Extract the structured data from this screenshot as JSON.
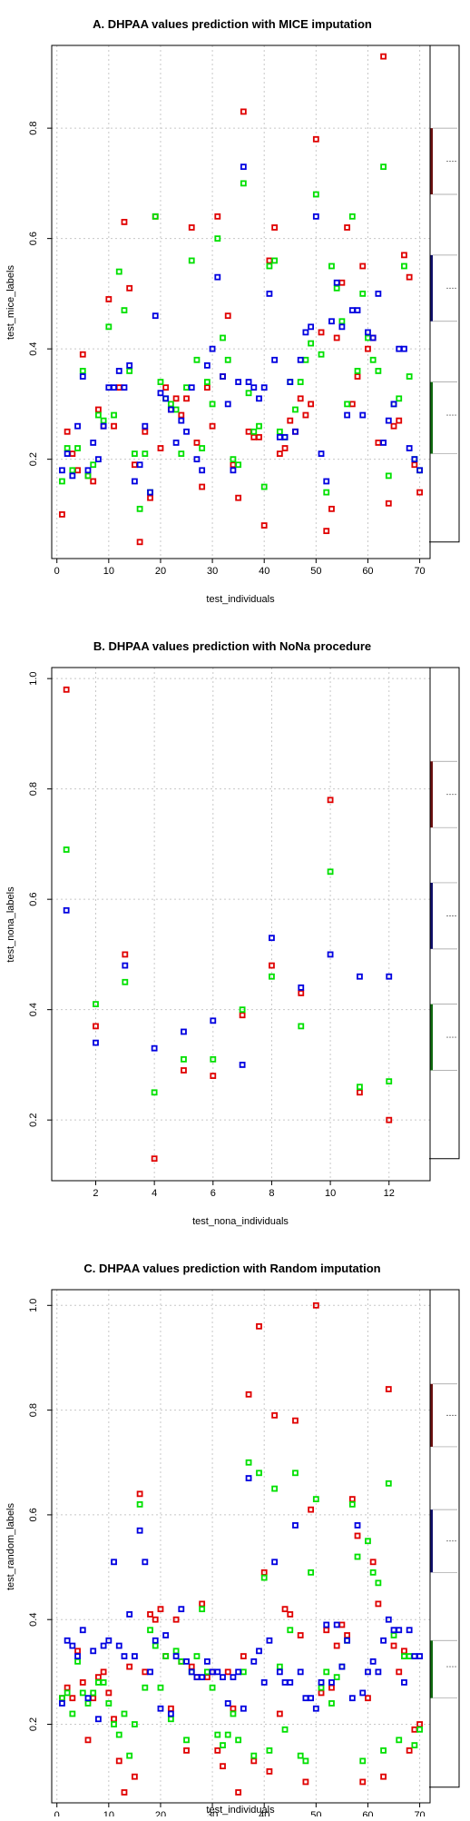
{
  "colors": {
    "red": "#e00000",
    "green": "#00e000",
    "blue": "#0000e0",
    "grid": "#c8c8c8",
    "box_red": "#6b1010",
    "box_blue": "#10106b",
    "box_green": "#106b10"
  },
  "chart_data": [
    {
      "type": "scatter",
      "title": "A. DHPAA values prediction with MICE imputation",
      "xlabel": "test_individuals",
      "ylabel": "test_mice_labels",
      "xlim": [
        -1,
        72
      ],
      "ylim": [
        0.02,
        0.95
      ],
      "xticks": [
        0,
        10,
        20,
        30,
        40,
        50,
        60,
        70
      ],
      "yticks": [
        0.2,
        0.4,
        0.6,
        0.8
      ],
      "grid": true,
      "legend": "none",
      "series": [
        {
          "color_key": "red",
          "x": [
            1,
            2,
            3,
            4,
            5,
            6,
            7,
            8,
            9,
            10,
            11,
            12,
            13,
            14,
            15,
            16,
            17,
            18,
            19,
            20,
            21,
            22,
            23,
            24,
            25,
            26,
            27,
            28,
            29,
            30,
            31,
            32,
            33,
            34,
            35,
            36,
            37,
            38,
            39,
            40,
            41,
            42,
            43,
            44,
            45,
            46,
            47,
            48,
            49,
            50,
            51,
            52,
            53,
            54,
            55,
            56,
            57,
            58,
            59,
            60,
            61,
            62,
            63,
            64,
            65,
            66,
            67,
            68,
            69,
            70
          ],
          "y": [
            0.1,
            0.25,
            0.21,
            0.18,
            0.39,
            0.17,
            0.16,
            0.29,
            0.26,
            0.49,
            0.26,
            0.33,
            0.63,
            0.51,
            0.19,
            0.05,
            0.25,
            0.13,
            0.64,
            0.22,
            0.33,
            0.29,
            0.31,
            0.28,
            0.31,
            0.62,
            0.23,
            0.15,
            0.33,
            0.26,
            0.64,
            0.35,
            0.46,
            0.19,
            0.13,
            0.83,
            0.25,
            0.24,
            0.24,
            0.08,
            0.56,
            0.62,
            0.21,
            0.22,
            0.27,
            0.25,
            0.31,
            0.28,
            0.3,
            0.78,
            0.43,
            0.07,
            0.11,
            0.42,
            0.52,
            0.62,
            0.3,
            0.35,
            0.55,
            0.4,
            0.42,
            0.23,
            0.93,
            0.12,
            0.26,
            0.27,
            0.57,
            0.53,
            0.19,
            0.14
          ]
        },
        {
          "color_key": "green",
          "x": [
            1,
            2,
            3,
            4,
            5,
            6,
            7,
            8,
            9,
            10,
            11,
            12,
            13,
            14,
            15,
            16,
            17,
            18,
            19,
            20,
            21,
            22,
            23,
            24,
            25,
            26,
            27,
            28,
            29,
            30,
            31,
            32,
            33,
            34,
            35,
            36,
            37,
            38,
            39,
            40,
            41,
            42,
            43,
            44,
            45,
            46,
            47,
            48,
            49,
            50,
            51,
            52,
            53,
            54,
            55,
            56,
            57,
            58,
            59,
            60,
            61,
            62,
            63,
            64,
            65,
            66,
            67,
            68,
            69,
            70
          ],
          "y": [
            0.16,
            0.22,
            0.18,
            0.22,
            0.36,
            0.17,
            0.19,
            0.28,
            0.27,
            0.44,
            0.28,
            0.54,
            0.47,
            0.36,
            0.21,
            0.11,
            0.21,
            0.14,
            0.64,
            0.34,
            0.31,
            0.3,
            0.29,
            0.21,
            0.33,
            0.56,
            0.38,
            0.22,
            0.34,
            0.3,
            0.6,
            0.42,
            0.38,
            0.2,
            0.19,
            0.7,
            0.32,
            0.25,
            0.26,
            0.15,
            0.55,
            0.56,
            0.25,
            0.24,
            0.34,
            0.29,
            0.34,
            0.38,
            0.41,
            0.68,
            0.39,
            0.14,
            0.55,
            0.51,
            0.45,
            0.3,
            0.64,
            0.36,
            0.5,
            0.42,
            0.38,
            0.36,
            0.73,
            0.17,
            0.3,
            0.31,
            0.55,
            0.35,
            0.2,
            0.18
          ]
        },
        {
          "color_key": "blue",
          "x": [
            1,
            2,
            3,
            4,
            5,
            6,
            7,
            8,
            9,
            10,
            11,
            12,
            13,
            14,
            15,
            16,
            17,
            18,
            19,
            20,
            21,
            22,
            23,
            24,
            25,
            26,
            27,
            28,
            29,
            30,
            31,
            32,
            33,
            34,
            35,
            36,
            37,
            38,
            39,
            40,
            41,
            42,
            43,
            44,
            45,
            46,
            47,
            48,
            49,
            50,
            51,
            52,
            53,
            54,
            55,
            56,
            57,
            58,
            59,
            60,
            61,
            62,
            63,
            64,
            65,
            66,
            67,
            68,
            69,
            70
          ],
          "y": [
            0.18,
            0.21,
            0.17,
            0.26,
            0.35,
            0.18,
            0.23,
            0.2,
            0.26,
            0.33,
            0.33,
            0.36,
            0.33,
            0.37,
            0.16,
            0.19,
            0.26,
            0.14,
            0.46,
            0.32,
            0.31,
            0.29,
            0.23,
            0.27,
            0.25,
            0.33,
            0.2,
            0.18,
            0.37,
            0.4,
            0.53,
            0.35,
            0.3,
            0.18,
            0.34,
            0.73,
            0.34,
            0.33,
            0.31,
            0.33,
            0.5,
            0.38,
            0.24,
            0.24,
            0.34,
            0.25,
            0.38,
            0.43,
            0.44,
            0.64,
            0.21,
            0.16,
            0.45,
            0.52,
            0.44,
            0.28,
            0.47,
            0.47,
            0.28,
            0.43,
            0.42,
            0.5,
            0.23,
            0.27,
            0.3,
            0.4,
            0.4,
            0.22,
            0.2,
            0.18
          ]
        }
      ],
      "boxes": [
        {
          "color_key": "box_red",
          "median": 0.74,
          "q1": 0.68,
          "q3": 0.8
        },
        {
          "color_key": "box_blue",
          "median": 0.51,
          "q1": 0.45,
          "q3": 0.57
        },
        {
          "color_key": "box_green",
          "median": 0.28,
          "q1": 0.21,
          "q3": 0.34
        }
      ],
      "box_frame_bottom": 0.05
    },
    {
      "type": "scatter",
      "title": "B. DHPAA values prediction with NoNa procedure",
      "xlabel": "test_nona_individuals",
      "ylabel": "test_nona_labels",
      "xlim": [
        0.5,
        13.4
      ],
      "ylim": [
        0.09,
        1.02
      ],
      "xticks": [
        2,
        4,
        6,
        8,
        10,
        12
      ],
      "yticks": [
        0.2,
        0.4,
        0.6,
        0.8,
        1.0
      ],
      "grid": true,
      "legend": "none",
      "series": [
        {
          "color_key": "red",
          "x": [
            1,
            2,
            3,
            4,
            5,
            6,
            7,
            8,
            9,
            10,
            11,
            12
          ],
          "y": [
            0.98,
            0.37,
            0.5,
            0.13,
            0.29,
            0.28,
            0.39,
            0.48,
            0.43,
            0.78,
            0.25,
            0.2
          ]
        },
        {
          "color_key": "green",
          "x": [
            1,
            2,
            3,
            4,
            5,
            6,
            7,
            8,
            9,
            10,
            11,
            12
          ],
          "y": [
            0.69,
            0.41,
            0.45,
            0.25,
            0.31,
            0.31,
            0.4,
            0.46,
            0.37,
            0.65,
            0.26,
            0.27
          ]
        },
        {
          "color_key": "blue",
          "x": [
            1,
            2,
            3,
            4,
            5,
            6,
            7,
            8,
            9,
            10,
            11,
            12
          ],
          "y": [
            0.58,
            0.34,
            0.48,
            0.33,
            0.36,
            0.38,
            0.3,
            0.53,
            0.44,
            0.5,
            0.46,
            0.46
          ]
        }
      ],
      "boxes": [
        {
          "color_key": "box_red",
          "median": 0.79,
          "q1": 0.73,
          "q3": 0.85
        },
        {
          "color_key": "box_blue",
          "median": 0.57,
          "q1": 0.51,
          "q3": 0.63
        },
        {
          "color_key": "box_green",
          "median": 0.35,
          "q1": 0.29,
          "q3": 0.41
        }
      ],
      "box_frame_bottom": 0.13
    },
    {
      "type": "scatter",
      "title": "C. DHPAA values prediction with Random imputation",
      "xlabel": "test_individuals",
      "ylabel": "test_random_labels",
      "xlim": [
        -1,
        72
      ],
      "ylim": [
        0.05,
        1.03
      ],
      "xticks": [
        0,
        10,
        20,
        30,
        40,
        50,
        60,
        70
      ],
      "yticks": [
        0.2,
        0.4,
        0.6,
        0.8,
        1.0
      ],
      "grid": true,
      "legend": "none",
      "series": [
        {
          "color_key": "red",
          "x": [
            1,
            2,
            3,
            4,
            5,
            6,
            7,
            8,
            9,
            10,
            11,
            12,
            13,
            14,
            15,
            16,
            17,
            18,
            19,
            20,
            21,
            22,
            23,
            24,
            25,
            26,
            27,
            28,
            29,
            30,
            31,
            32,
            33,
            34,
            35,
            36,
            37,
            38,
            39,
            40,
            41,
            42,
            43,
            44,
            45,
            46,
            47,
            48,
            49,
            50,
            51,
            52,
            53,
            54,
            55,
            56,
            57,
            58,
            59,
            60,
            61,
            62,
            63,
            64,
            65,
            66,
            67,
            68,
            69,
            70
          ],
          "y": [
            0.25,
            0.27,
            0.25,
            0.34,
            0.28,
            0.17,
            0.25,
            0.29,
            0.3,
            0.26,
            0.21,
            0.13,
            0.07,
            0.31,
            0.1,
            0.64,
            0.3,
            0.41,
            0.4,
            0.42,
            0.33,
            0.23,
            0.4,
            0.32,
            0.15,
            0.31,
            0.29,
            0.43,
            0.29,
            0.3,
            0.15,
            0.12,
            0.3,
            0.23,
            0.07,
            0.33,
            0.83,
            0.13,
            0.96,
            0.49,
            0.11,
            0.79,
            0.22,
            0.42,
            0.41,
            0.78,
            0.37,
            0.09,
            0.61,
            1.0,
            0.26,
            0.38,
            0.27,
            0.35,
            0.39,
            0.37,
            0.63,
            0.56,
            0.09,
            0.25,
            0.51,
            0.43,
            0.1,
            0.84,
            0.35,
            0.3,
            0.34,
            0.15,
            0.19,
            0.2
          ]
        },
        {
          "color_key": "green",
          "x": [
            1,
            2,
            3,
            4,
            5,
            6,
            7,
            8,
            9,
            10,
            11,
            12,
            13,
            14,
            15,
            16,
            17,
            18,
            19,
            20,
            21,
            22,
            23,
            24,
            25,
            26,
            27,
            28,
            29,
            30,
            31,
            32,
            33,
            34,
            35,
            36,
            37,
            38,
            39,
            40,
            41,
            42,
            43,
            44,
            45,
            46,
            47,
            48,
            49,
            50,
            51,
            52,
            53,
            54,
            55,
            56,
            57,
            58,
            59,
            60,
            61,
            62,
            63,
            64,
            65,
            66,
            67,
            68,
            69,
            70
          ],
          "y": [
            0.25,
            0.26,
            0.22,
            0.32,
            0.26,
            0.24,
            0.26,
            0.28,
            0.28,
            0.24,
            0.2,
            0.18,
            0.22,
            0.14,
            0.2,
            0.62,
            0.27,
            0.38,
            0.35,
            0.27,
            0.33,
            0.21,
            0.34,
            0.32,
            0.17,
            0.3,
            0.33,
            0.42,
            0.3,
            0.27,
            0.18,
            0.16,
            0.18,
            0.22,
            0.17,
            0.3,
            0.7,
            0.14,
            0.68,
            0.48,
            0.15,
            0.65,
            0.31,
            0.19,
            0.38,
            0.68,
            0.14,
            0.13,
            0.49,
            0.63,
            0.27,
            0.3,
            0.24,
            0.29,
            0.31,
            0.36,
            0.62,
            0.52,
            0.13,
            0.55,
            0.49,
            0.47,
            0.15,
            0.66,
            0.37,
            0.17,
            0.33,
            0.33,
            0.16,
            0.19
          ]
        },
        {
          "color_key": "blue",
          "x": [
            1,
            2,
            3,
            4,
            5,
            6,
            7,
            8,
            9,
            10,
            11,
            12,
            13,
            14,
            15,
            16,
            17,
            18,
            19,
            20,
            21,
            22,
            23,
            24,
            25,
            26,
            27,
            28,
            29,
            30,
            31,
            32,
            33,
            34,
            35,
            36,
            37,
            38,
            39,
            40,
            41,
            42,
            43,
            44,
            45,
            46,
            47,
            48,
            49,
            50,
            51,
            52,
            53,
            54,
            55,
            56,
            57,
            58,
            59,
            60,
            61,
            62,
            63,
            64,
            65,
            66,
            67,
            68,
            69,
            70
          ],
          "y": [
            0.24,
            0.36,
            0.35,
            0.33,
            0.38,
            0.25,
            0.34,
            0.21,
            0.35,
            0.36,
            0.51,
            0.35,
            0.33,
            0.41,
            0.33,
            0.57,
            0.51,
            0.3,
            0.36,
            0.23,
            0.37,
            0.22,
            0.33,
            0.42,
            0.32,
            0.3,
            0.29,
            0.29,
            0.32,
            0.3,
            0.3,
            0.29,
            0.24,
            0.29,
            0.3,
            0.23,
            0.67,
            0.32,
            0.34,
            0.28,
            0.36,
            0.51,
            0.3,
            0.28,
            0.28,
            0.58,
            0.3,
            0.25,
            0.25,
            0.23,
            0.28,
            0.39,
            0.28,
            0.39,
            0.31,
            0.36,
            0.25,
            0.58,
            0.26,
            0.3,
            0.32,
            0.3,
            0.36,
            0.4,
            0.38,
            0.38,
            0.28,
            0.38,
            0.33,
            0.33
          ]
        }
      ],
      "boxes": [
        {
          "color_key": "box_red",
          "median": 0.79,
          "q1": 0.73,
          "q3": 0.85
        },
        {
          "color_key": "box_blue",
          "median": 0.55,
          "q1": 0.49,
          "q3": 0.61
        },
        {
          "color_key": "box_green",
          "median": 0.31,
          "q1": 0.25,
          "q3": 0.36
        }
      ],
      "box_frame_bottom": 0.08
    }
  ]
}
